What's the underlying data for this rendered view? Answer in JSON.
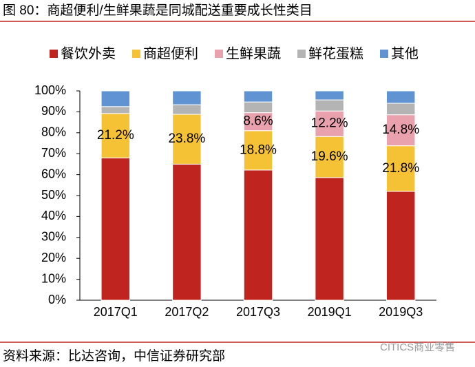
{
  "chart_data": {
    "type": "stacked_bar",
    "title": "图 80：商超便利/生鲜果蔬是同城配送重要成长性类目",
    "source": "资料来源：比达咨询，中信证券研究部",
    "watermark": "CITICS商业零售",
    "categories": [
      "2017Q1",
      "2017Q2",
      "2017Q3",
      "2019Q1",
      "2019Q3"
    ],
    "series": [
      {
        "name": "餐饮外卖",
        "color": "#c0241e",
        "values": [
          68.0,
          65.0,
          62.2,
          58.6,
          52.0
        ]
      },
      {
        "name": "商超便利",
        "color": "#f6c235",
        "values": [
          21.2,
          23.8,
          18.8,
          19.6,
          21.8
        ],
        "value_labels": [
          "21.2%",
          "23.8%",
          "18.8%",
          "19.6%",
          "21.8%"
        ]
      },
      {
        "name": "生鲜果蔬",
        "color": "#e8a1ad",
        "values": [
          0,
          0,
          8.6,
          12.2,
          14.8
        ],
        "value_labels": [
          null,
          null,
          "8.6%",
          "12.2%",
          "14.8%"
        ]
      },
      {
        "name": "鲜花蛋糕",
        "color": "#b4b4b4",
        "values": [
          3.3,
          4.6,
          5.1,
          5.3,
          5.5
        ]
      },
      {
        "name": "其他",
        "color": "#5f93d2",
        "values": [
          7.5,
          6.6,
          5.3,
          4.3,
          5.9
        ]
      }
    ],
    "ylim": [
      0,
      100
    ],
    "yticks": [
      {
        "value": 0,
        "label": "0%"
      },
      {
        "value": 10,
        "label": "10%"
      },
      {
        "value": 20,
        "label": "20%"
      },
      {
        "value": 30,
        "label": "30%"
      },
      {
        "value": 40,
        "label": "40%"
      },
      {
        "value": 50,
        "label": "50%"
      },
      {
        "value": 60,
        "label": "60%"
      },
      {
        "value": 70,
        "label": "70%"
      },
      {
        "value": 80,
        "label": "80%"
      },
      {
        "value": 90,
        "label": "90%"
      },
      {
        "value": 100,
        "label": "100%"
      }
    ]
  }
}
